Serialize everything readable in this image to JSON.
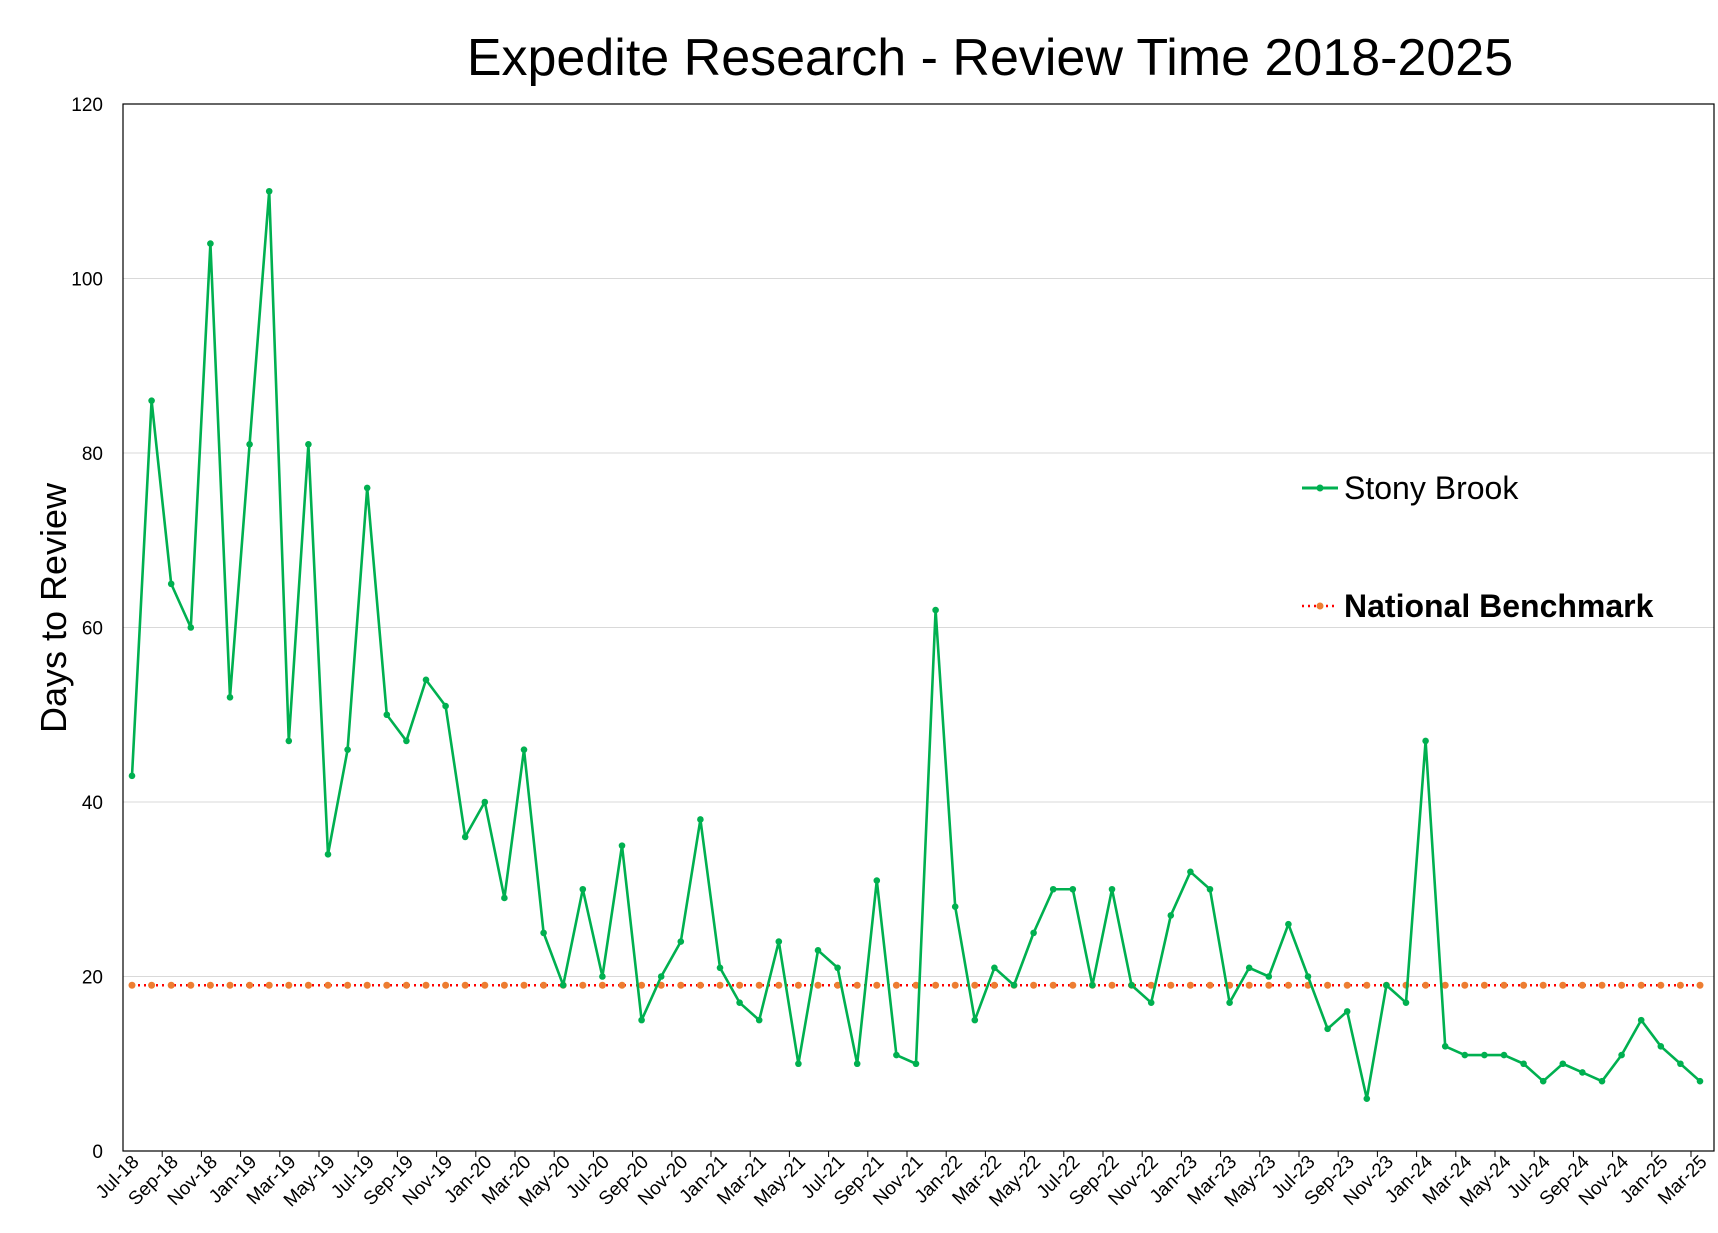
{
  "chart_data": {
    "type": "line",
    "title": "Expedite Research - Review Time 2018-2025",
    "xlabel": "",
    "ylabel": "Days to Review",
    "ylim": [
      0,
      120
    ],
    "yticks": [
      0,
      20,
      40,
      60,
      80,
      100,
      120
    ],
    "grid": "horizontal",
    "legend_position": "right",
    "x": [
      "Jul-18",
      "Aug-18",
      "Sep-18",
      "Oct-18",
      "Nov-18",
      "Dec-18",
      "Jan-19",
      "Feb-19",
      "Mar-19",
      "Apr-19",
      "May-19",
      "Jun-19",
      "Jul-19",
      "Aug-19",
      "Sep-19",
      "Oct-19",
      "Nov-19",
      "Dec-19",
      "Jan-20",
      "Feb-20",
      "Mar-20",
      "Apr-20",
      "May-20",
      "Jun-20",
      "Jul-20",
      "Aug-20",
      "Sep-20",
      "Oct-20",
      "Nov-20",
      "Dec-20",
      "Jan-21",
      "Feb-21",
      "Mar-21",
      "Apr-21",
      "May-21",
      "Jun-21",
      "Jul-21",
      "Aug-21",
      "Sep-21",
      "Oct-21",
      "Nov-21",
      "Dec-21",
      "Jan-22",
      "Feb-22",
      "Mar-22",
      "Apr-22",
      "May-22",
      "Jun-22",
      "Jul-22",
      "Aug-22",
      "Sep-22",
      "Oct-22",
      "Nov-22",
      "Dec-22",
      "Jan-23",
      "Feb-23",
      "Mar-23",
      "Apr-23",
      "May-23",
      "Jun-23",
      "Jul-23",
      "Aug-23",
      "Sep-23",
      "Oct-23",
      "Nov-23",
      "Dec-23",
      "Jan-24",
      "Feb-24",
      "Mar-24",
      "Apr-24",
      "May-24",
      "Jun-24",
      "Jul-24",
      "Aug-24",
      "Sep-24",
      "Oct-24",
      "Nov-24",
      "Dec-24",
      "Jan-25",
      "Feb-25",
      "Mar-25"
    ],
    "xtick_labels": [
      "Jul-18",
      "Sep-18",
      "Nov-18",
      "Jan-19",
      "Mar-19",
      "May-19",
      "Jul-19",
      "Sep-19",
      "Nov-19",
      "Jan-20",
      "Mar-20",
      "May-20",
      "Jul-20",
      "Sep-20",
      "Nov-20",
      "Jan-21",
      "Mar-21",
      "May-21",
      "Jul-21",
      "Sep-21",
      "Nov-21",
      "Jan-22",
      "Mar-22",
      "May-22",
      "Jul-22",
      "Sep-22",
      "Nov-22",
      "Jan-23",
      "Mar-23",
      "May-23",
      "Jul-23",
      "Sep-23",
      "Nov-23",
      "Jan-24",
      "Mar-24",
      "May-24",
      "Jul-24",
      "Sep-24",
      "Nov-24",
      "Jan-25",
      "Mar-25"
    ],
    "series": [
      {
        "name": "Stony Brook",
        "color": "#00b050",
        "values": [
          43,
          86,
          65,
          60,
          104,
          52,
          81,
          110,
          47,
          81,
          34,
          46,
          76,
          50,
          47,
          54,
          51,
          36,
          40,
          29,
          46,
          25,
          19,
          30,
          20,
          35,
          15,
          20,
          24,
          38,
          21,
          17,
          15,
          24,
          10,
          23,
          21,
          10,
          31,
          11,
          10,
          62,
          28,
          15,
          21,
          19,
          25,
          30,
          30,
          19,
          30,
          19,
          17,
          27,
          32,
          30,
          17,
          21,
          20,
          26,
          20,
          14,
          16,
          6,
          19,
          17,
          47,
          12,
          11,
          11,
          11,
          10,
          8,
          10,
          9,
          8,
          11,
          15,
          12,
          10,
          8
        ]
      },
      {
        "name": "National Benchmark",
        "color": "#ff0000",
        "marker_color": "#ed7d31",
        "values": [
          19,
          19,
          19,
          19,
          19,
          19,
          19,
          19,
          19,
          19,
          19,
          19,
          19,
          19,
          19,
          19,
          19,
          19,
          19,
          19,
          19,
          19,
          19,
          19,
          19,
          19,
          19,
          19,
          19,
          19,
          19,
          19,
          19,
          19,
          19,
          19,
          19,
          19,
          19,
          19,
          19,
          19,
          19,
          19,
          19,
          19,
          19,
          19,
          19,
          19,
          19,
          19,
          19,
          19,
          19,
          19,
          19,
          19,
          19,
          19,
          19,
          19,
          19,
          19,
          19,
          19,
          19,
          19,
          19,
          19,
          19,
          19,
          19,
          19,
          19,
          19,
          19,
          19,
          19,
          19,
          19
        ]
      }
    ]
  }
}
